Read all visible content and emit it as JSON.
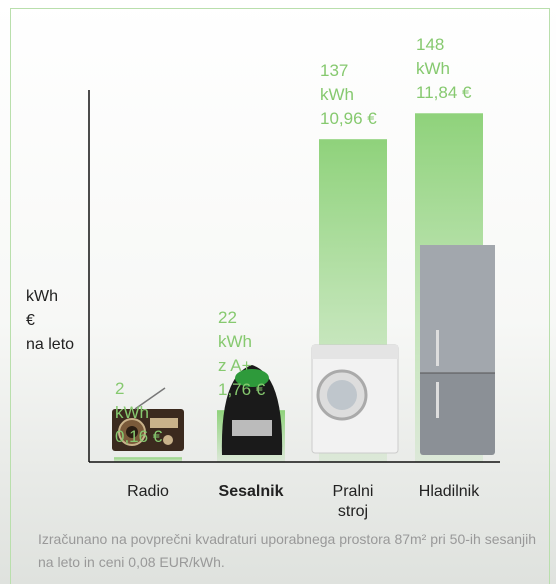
{
  "chart_data": {
    "type": "bar",
    "categories": [
      "Radio",
      "Sesalnik",
      "Pralni stroj",
      "Hladilnik"
    ],
    "highlight": 1,
    "values": [
      2,
      22,
      137,
      148
    ],
    "unit": "kWh",
    "notes": [
      null,
      "z A+",
      null,
      null
    ],
    "cost_labels": [
      "0,16 €",
      "1,76 €",
      "10,96 €",
      "11,84 €"
    ],
    "color": "#8fd27b",
    "ylim": [
      0,
      160
    ],
    "y_label": [
      "kWh",
      "€",
      "na leto"
    ],
    "footnote": "Izračunano na povprečni kvadraturi uporabnega prostora 87m² pri 50-ih sesanjih na leto in ceni 0,08 EUR/kWh."
  }
}
